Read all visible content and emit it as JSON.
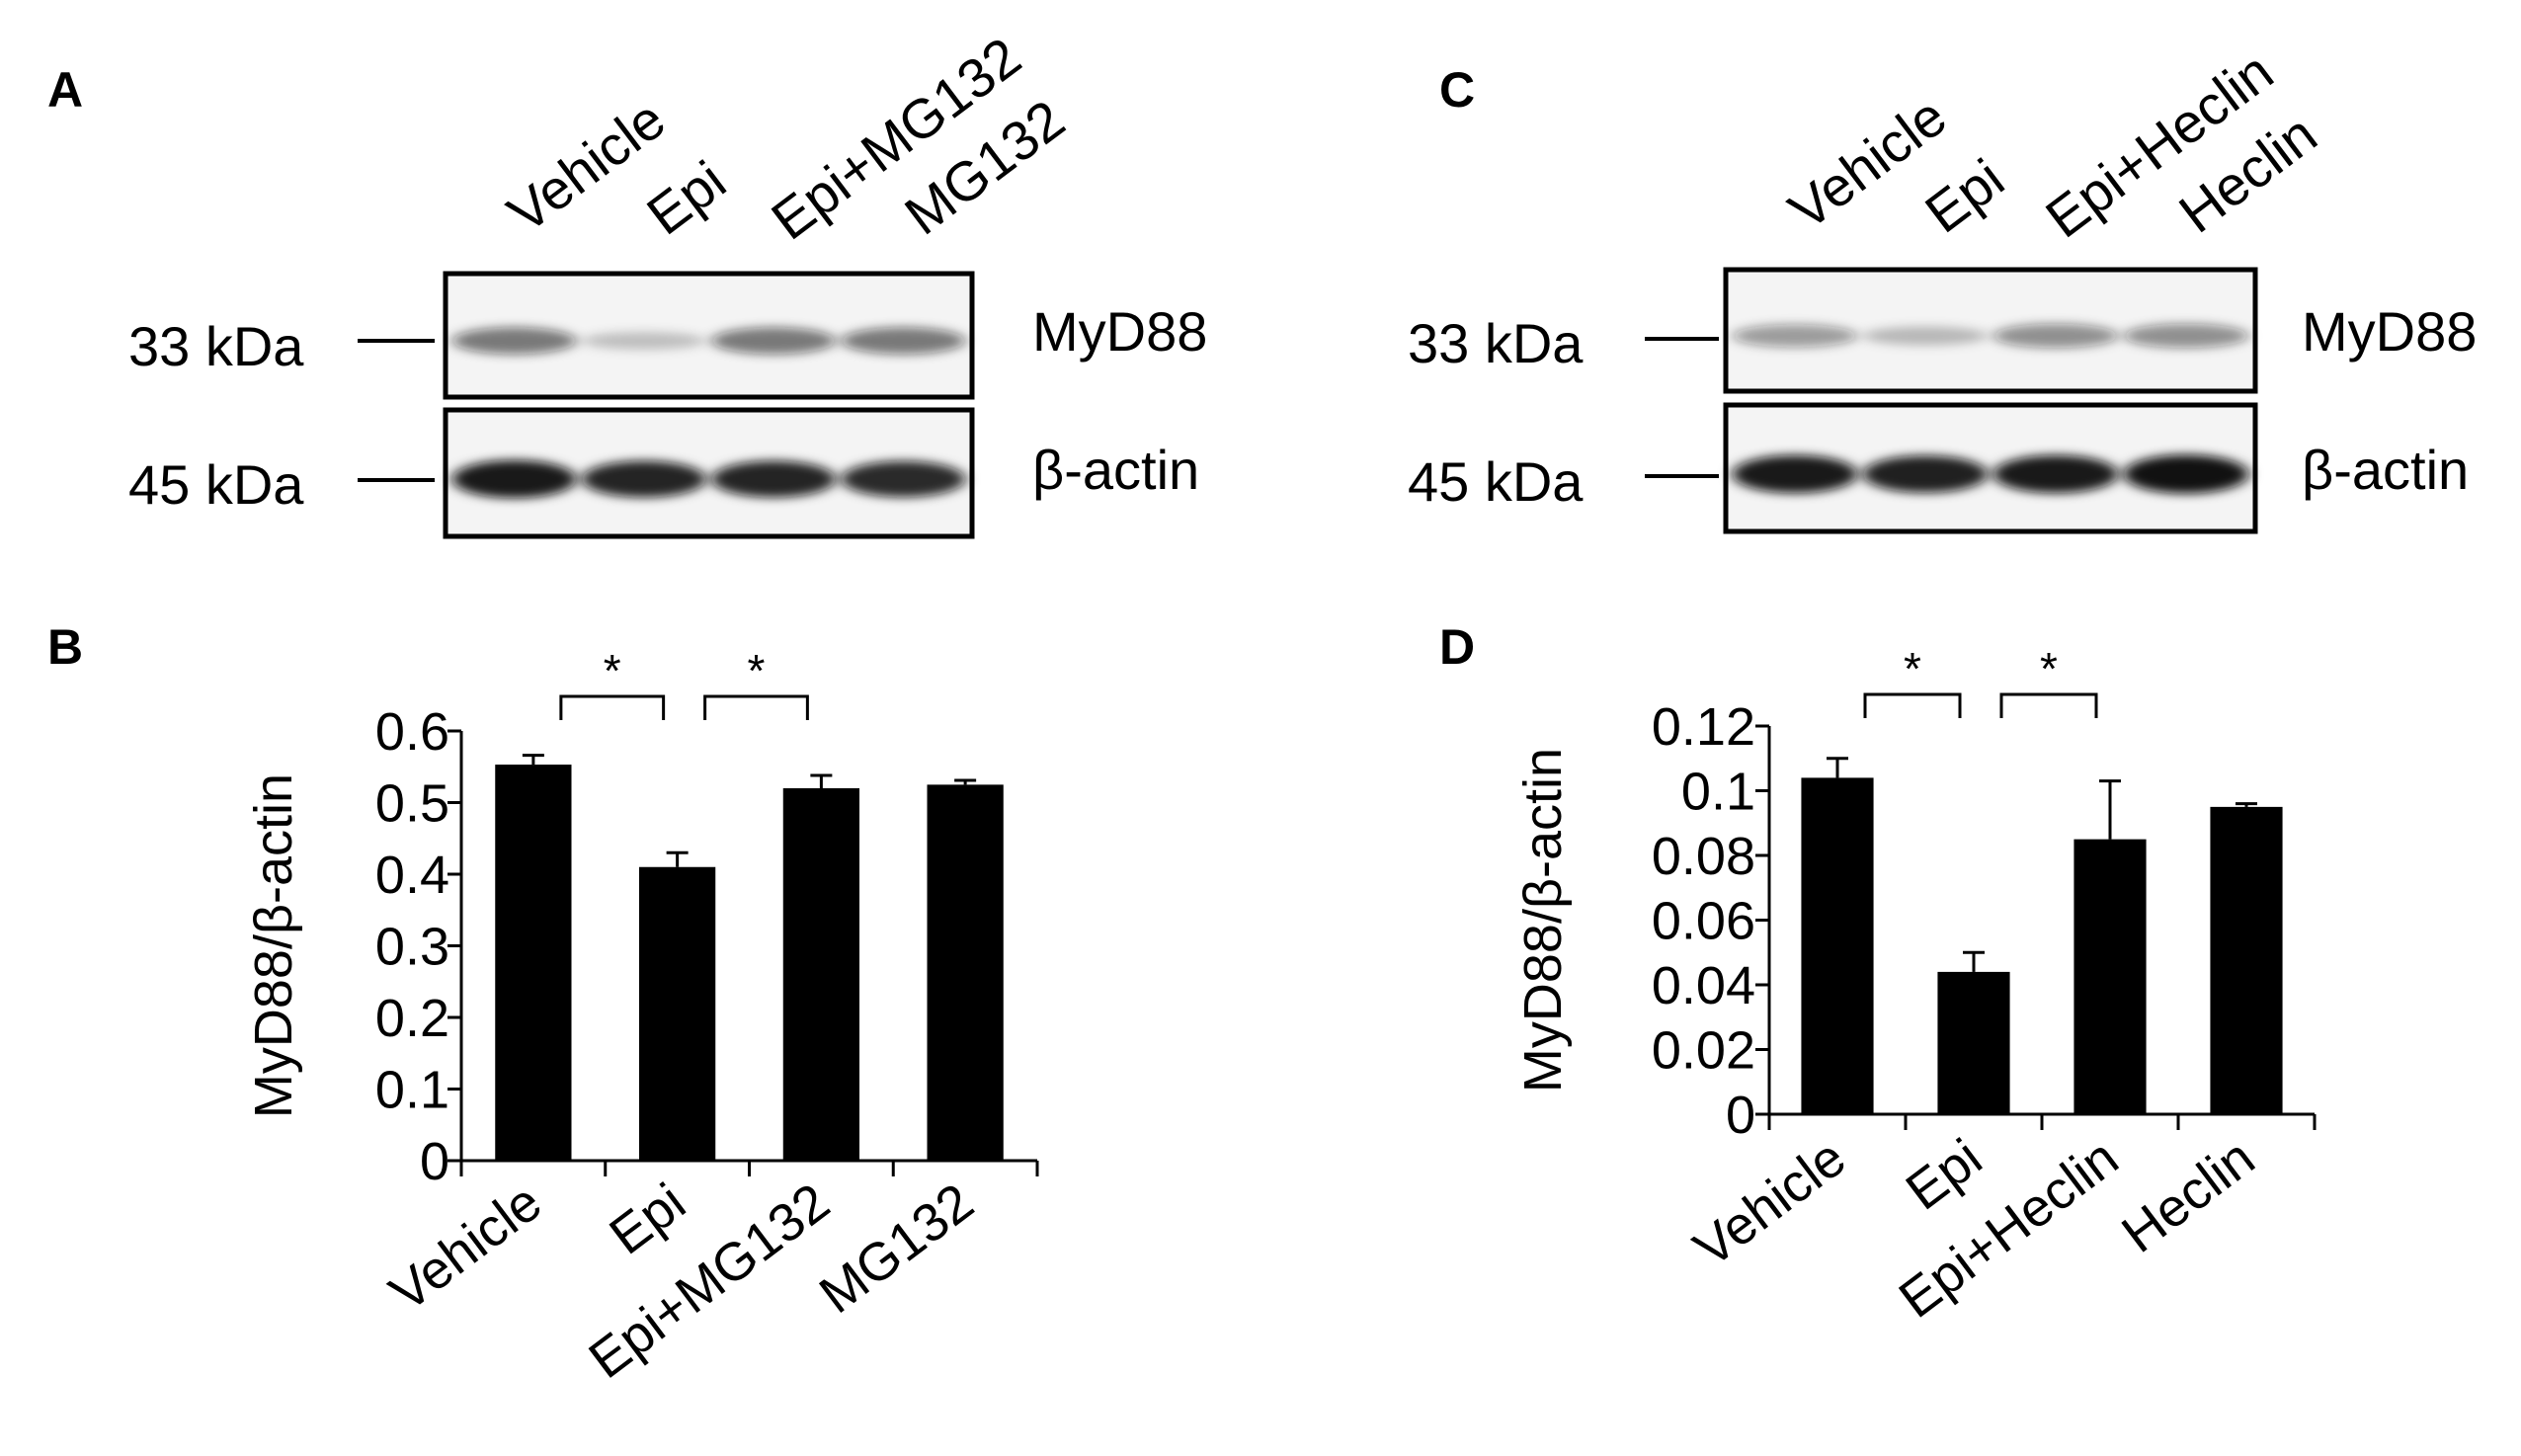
{
  "panels": {
    "A": "A",
    "B": "B",
    "C": "C",
    "D": "D"
  },
  "blots": [
    {
      "panel": "A",
      "lanes": [
        "Vehicle",
        "Epi",
        "Epi+MG132",
        "MG132"
      ],
      "rows": [
        {
          "marker": "33 kDa",
          "protein": "MyD88",
          "band_intensity": [
            0.55,
            0.22,
            0.55,
            0.55
          ]
        },
        {
          "marker": "45 kDa",
          "protein": "β-actin",
          "band_intensity": [
            0.95,
            0.9,
            0.9,
            0.88
          ]
        }
      ]
    },
    {
      "panel": "C",
      "lanes": [
        "Vehicle",
        "Epi",
        "Epi+Heclin",
        "Heclin"
      ],
      "rows": [
        {
          "marker": "33 kDa",
          "protein": "MyD88",
          "band_intensity": [
            0.4,
            0.25,
            0.45,
            0.45
          ]
        },
        {
          "marker": "45 kDa",
          "protein": "β-actin",
          "band_intensity": [
            0.95,
            0.92,
            0.95,
            0.98
          ]
        }
      ]
    }
  ],
  "chart_data": [
    {
      "panel": "B",
      "type": "bar",
      "categories": [
        "Vehicle",
        "Epi",
        "Epi+MG132",
        "MG132"
      ],
      "values": [
        0.553,
        0.41,
        0.52,
        0.525
      ],
      "errors": [
        0.013,
        0.02,
        0.018,
        0.006
      ],
      "ylabel": "MyD88/β-actin",
      "ylim": [
        0,
        0.6
      ],
      "yticks": [
        "0",
        "0.1",
        "0.2",
        "0.3",
        "0.4",
        "0.5",
        "0.6"
      ],
      "yticks_values": [
        0,
        0.1,
        0.2,
        0.3,
        0.4,
        0.5,
        0.6
      ],
      "significance": [
        {
          "from": 0,
          "to": 1,
          "label": "*"
        },
        {
          "from": 1,
          "to": 2,
          "label": "*"
        }
      ],
      "bar_color": "#000000"
    },
    {
      "panel": "D",
      "type": "bar",
      "categories": [
        "Vehicle",
        "Epi",
        "Epi+Heclin",
        "Heclin"
      ],
      "values": [
        0.104,
        0.044,
        0.085,
        0.095
      ],
      "errors": [
        0.006,
        0.006,
        0.018,
        0.001
      ],
      "ylabel": "MyD88/β-actin",
      "ylim": [
        0,
        0.12
      ],
      "yticks": [
        "0",
        "0.02",
        "0.04",
        "0.06",
        "0.08",
        "0.1",
        "0.12"
      ],
      "yticks_values": [
        0,
        0.02,
        0.04,
        0.06,
        0.08,
        0.1,
        0.12
      ],
      "significance": [
        {
          "from": 0,
          "to": 1,
          "label": "*"
        },
        {
          "from": 1,
          "to": 2,
          "label": "*"
        }
      ],
      "bar_color": "#000000"
    }
  ]
}
